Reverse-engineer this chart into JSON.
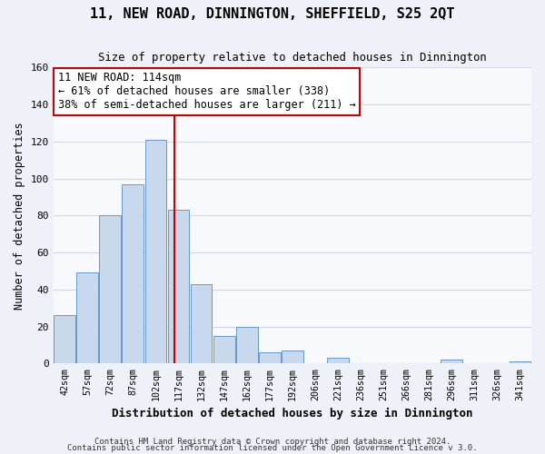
{
  "title": "11, NEW ROAD, DINNINGTON, SHEFFIELD, S25 2QT",
  "subtitle": "Size of property relative to detached houses in Dinnington",
  "xlabel": "Distribution of detached houses by size in Dinnington",
  "ylabel": "Number of detached properties",
  "bin_labels": [
    "42sqm",
    "57sqm",
    "72sqm",
    "87sqm",
    "102sqm",
    "117sqm",
    "132sqm",
    "147sqm",
    "162sqm",
    "177sqm",
    "192sqm",
    "206sqm",
    "221sqm",
    "236sqm",
    "251sqm",
    "266sqm",
    "281sqm",
    "296sqm",
    "311sqm",
    "326sqm",
    "341sqm"
  ],
  "bar_values": [
    26,
    49,
    80,
    97,
    121,
    83,
    43,
    15,
    20,
    6,
    7,
    0,
    3,
    0,
    0,
    0,
    0,
    2,
    0,
    0,
    1
  ],
  "bar_color": "#c9d9ed",
  "bar_edge_color": "#6699cc",
  "vline_color": "#cc0000",
  "ylim": [
    0,
    160
  ],
  "yticks": [
    0,
    20,
    40,
    60,
    80,
    100,
    120,
    140,
    160
  ],
  "annotation_title": "11 NEW ROAD: 114sqm",
  "annotation_line1": "← 61% of detached houses are smaller (338)",
  "annotation_line2": "38% of semi-detached houses are larger (211) →",
  "footer1": "Contains HM Land Registry data © Crown copyright and database right 2024.",
  "footer2": "Contains public sector information licensed under the Open Government Licence v 3.0.",
  "background_color": "#eef2f8",
  "plot_bg_color": "#f7f9fc",
  "grid_color": "#d0d8e8"
}
